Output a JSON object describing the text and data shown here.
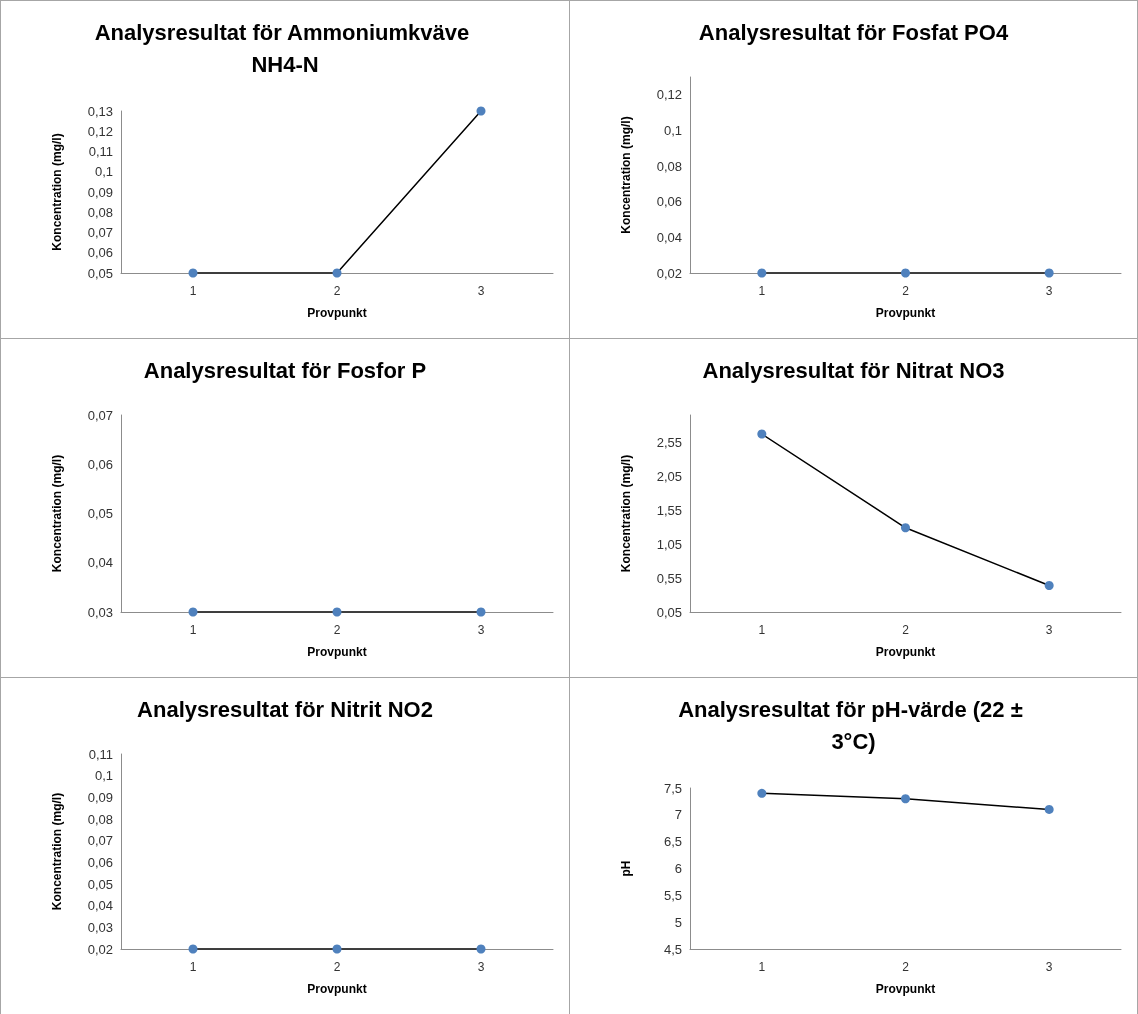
{
  "chart_data": [
    {
      "type": "line",
      "title": "Analysresultat för Ammoniumkväve NH4-N",
      "xlabel": "Provpunkt",
      "ylabel": "Koncentration (mg/l)",
      "categories": [
        "1",
        "2",
        "3"
      ],
      "marker": "circle",
      "grid": false,
      "series": [
        {
          "color": "#4f81bd",
          "values": [
            0.05,
            0.05,
            0.13
          ]
        }
      ],
      "ylim": [
        0.05,
        0.13
      ],
      "yticks": [
        {
          "value": 0.05,
          "label": "0,05"
        },
        {
          "value": 0.06,
          "label": "0,06"
        },
        {
          "value": 0.07,
          "label": "0,07"
        },
        {
          "value": 0.08,
          "label": "0,08"
        },
        {
          "value": 0.09,
          "label": "0,09"
        },
        {
          "value": 0.1,
          "label": "0,1"
        },
        {
          "value": 0.11,
          "label": "0,11"
        },
        {
          "value": 0.12,
          "label": "0,12"
        },
        {
          "value": 0.13,
          "label": "0,13"
        }
      ]
    },
    {
      "type": "line",
      "title": "Analysresultat för Fosfat PO4",
      "xlabel": "Provpunkt",
      "ylabel": "Koncentration (mg/l)",
      "categories": [
        "1",
        "2",
        "3"
      ],
      "marker": "circle",
      "grid": false,
      "series": [
        {
          "color": "#4f81bd",
          "values": [
            0.02,
            0.02,
            0.02
          ]
        }
      ],
      "ylim": [
        0.02,
        0.13
      ],
      "yticks": [
        {
          "value": 0.02,
          "label": "0,02"
        },
        {
          "value": 0.04,
          "label": "0,04"
        },
        {
          "value": 0.06,
          "label": "0,06"
        },
        {
          "value": 0.08,
          "label": "0,08"
        },
        {
          "value": 0.1,
          "label": "0,1"
        },
        {
          "value": 0.12,
          "label": "0,12"
        }
      ]
    },
    {
      "type": "line",
      "title": "Analysresultat för Fosfor P",
      "xlabel": "Provpunkt",
      "ylabel": "Koncentration (mg/l)",
      "categories": [
        "1",
        "2",
        "3"
      ],
      "marker": "circle",
      "grid": false,
      "series": [
        {
          "color": "#4f81bd",
          "values": [
            0.03,
            0.03,
            0.03
          ]
        }
      ],
      "ylim": [
        0.03,
        0.07
      ],
      "yticks": [
        {
          "value": 0.03,
          "label": "0,03"
        },
        {
          "value": 0.04,
          "label": "0,04"
        },
        {
          "value": 0.05,
          "label": "0,05"
        },
        {
          "value": 0.06,
          "label": "0,06"
        },
        {
          "value": 0.07,
          "label": "0,07"
        }
      ]
    },
    {
      "type": "line",
      "title": "Analysresultat för Nitrat NO3",
      "xlabel": "Provpunkt",
      "ylabel": "Koncentration (mg/l)",
      "categories": [
        "1",
        "2",
        "3"
      ],
      "marker": "circle",
      "grid": false,
      "series": [
        {
          "color": "#4f81bd",
          "values": [
            2.67,
            1.29,
            0.44
          ]
        }
      ],
      "ylim": [
        0.05,
        2.95
      ],
      "yticks": [
        {
          "value": 0.05,
          "label": "0,05"
        },
        {
          "value": 0.55,
          "label": "0,55"
        },
        {
          "value": 1.05,
          "label": "1,05"
        },
        {
          "value": 1.55,
          "label": "1,55"
        },
        {
          "value": 2.05,
          "label": "2,05"
        },
        {
          "value": 2.55,
          "label": "2,55"
        }
      ]
    },
    {
      "type": "line",
      "title": "Analysresultat för Nitrit NO2",
      "xlabel": "Provpunkt",
      "ylabel": "Koncentration (mg/l)",
      "categories": [
        "1",
        "2",
        "3"
      ],
      "marker": "circle",
      "grid": false,
      "series": [
        {
          "color": "#4f81bd",
          "values": [
            0.02,
            0.02,
            0.02
          ]
        }
      ],
      "ylim": [
        0.02,
        0.11
      ],
      "yticks": [
        {
          "value": 0.02,
          "label": "0,02"
        },
        {
          "value": 0.03,
          "label": "0,03"
        },
        {
          "value": 0.04,
          "label": "0,04"
        },
        {
          "value": 0.05,
          "label": "0,05"
        },
        {
          "value": 0.06,
          "label": "0,06"
        },
        {
          "value": 0.07,
          "label": "0,07"
        },
        {
          "value": 0.08,
          "label": "0,08"
        },
        {
          "value": 0.09,
          "label": "0,09"
        },
        {
          "value": 0.1,
          "label": "0,1"
        },
        {
          "value": 0.11,
          "label": "0,11"
        }
      ]
    },
    {
      "type": "line",
      "title": "Analysresultat för pH-värde (22 ± 3°C)",
      "xlabel": "Provpunkt",
      "ylabel": "pH",
      "categories": [
        "1",
        "2",
        "3"
      ],
      "marker": "circle",
      "grid": false,
      "series": [
        {
          "color": "#4f81bd",
          "values": [
            7.4,
            7.3,
            7.1
          ]
        }
      ],
      "ylim": [
        4.5,
        7.5
      ],
      "yticks": [
        {
          "value": 4.5,
          "label": "4,5"
        },
        {
          "value": 5,
          "label": "5"
        },
        {
          "value": 5.5,
          "label": "5,5"
        },
        {
          "value": 6,
          "label": "6"
        },
        {
          "value": 6.5,
          "label": "6,5"
        },
        {
          "value": 7,
          "label": "7"
        },
        {
          "value": 7.5,
          "label": "7,5"
        }
      ]
    }
  ]
}
